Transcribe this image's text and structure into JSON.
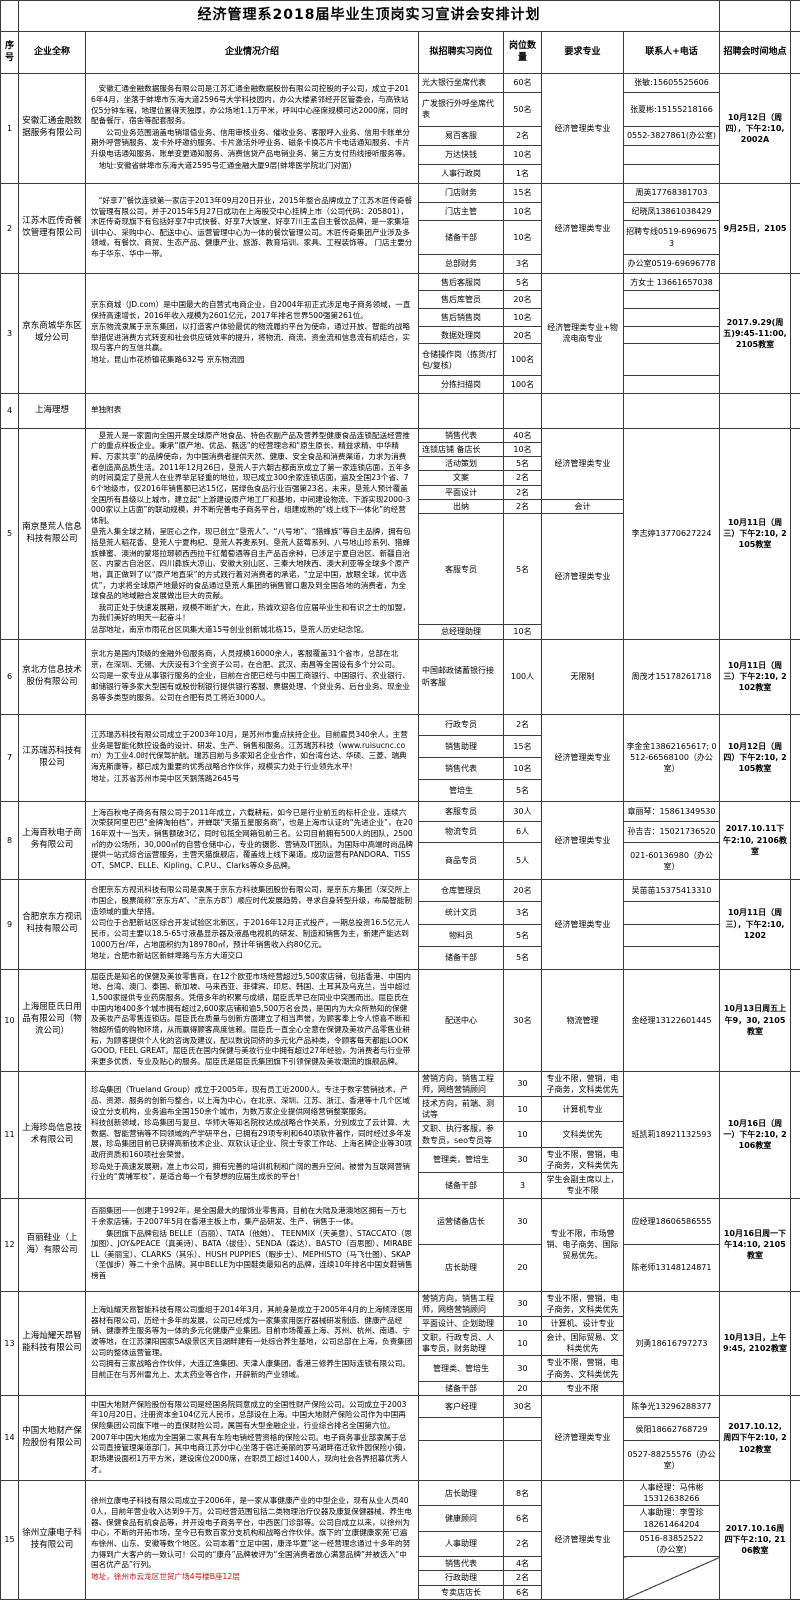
{
  "title": "经济管理系2018届毕业生顶岗实习宣讲会安排计划",
  "headers": [
    "序号",
    "企业全称",
    "企业情况介绍",
    "拟招聘实习岗位",
    "岗位数量",
    "要求专业",
    "联系人+电话",
    "招聘会时间地点"
  ],
  "colors": {
    "red_text": "#cc1111"
  },
  "rows": [
    {
      "seq": "1",
      "company": "安徽汇通金融数据服务有限公司",
      "intro": [
        {
          "t": "　安徽汇通金融数据服务有限公司是江苏汇通金融数据股份有限公司控股的子公司，成立于2016年4月，坐落于蚌埠市东海大道2596号大学科技园内，办公大楼紧邻经开区管委会，与高铁站仅5分钟车程，地理位置得天独厚，办公场地1.1万平米，呼叫中心座席规模可达2000席，同时配备餐厅、宿舍等配套服务。"
        },
        {
          "t": "　　公司业务范围涵盖电销增值业务、信用审核业务、催收业务、客服呼入业务、信用卡账单分期外呼营销服务、发卡外呼邀约服务、卡片激活外呼业务、磁条卡换芯片卡电话通知服务、卡片升级电话通知服务、账单变更通知服务、消费信贷产品电销业务、第三方支付热线接听服务等。"
        },
        {
          "t": "　地址:安徽省蚌埠市东海大道2595号汇通金融大厦9层(蚌埠医学院北门对面)"
        }
      ],
      "positions": [
        {
          "title": "光大银行坐席代表",
          "count": "60名"
        },
        {
          "title": "广发银行外呼坐席代表",
          "count": "50名"
        },
        {
          "title": "易百客服",
          "count": "2名"
        },
        {
          "title": "万达快钱",
          "count": "10名"
        },
        {
          "title": "人事行政岗",
          "count": "1名"
        }
      ],
      "majors": [
        {
          "text": "经济管理类专业",
          "span": 5
        }
      ],
      "contacts": [
        {
          "text": "张敏:15605525606"
        },
        {
          "text": "张夏彬:15155218166"
        },
        {
          "text": "0552-3827861(办公室)"
        },
        {
          "text": ""
        },
        {
          "text": ""
        }
      ],
      "time": "10月12日（周四），下午2:10, 2002A"
    },
    {
      "seq": "2",
      "company": "江苏木匠传奇餐饮管理有限公司",
      "intro": [
        {
          "t": "　“好享7”餐饮连锁第一家店于2013年09月20日开业，2015年整合品牌成立了江苏木匠传奇餐饮管理有限公司，并于2015年5月27日成功在上海股交中心挂牌上市（公司代码：205801），木匠传奇现旗下有包括好享7中式快餐、好享7大饭堂、好享7川王孟自主餐饮品牌，是一家集培训中心、采购中心、配送中心、运营管理中心为一体的餐饮管理公司。木匠传奇集团产业涉及多领域，有餐饮、商贸、生态产品、健康产业、旅游、教育培训、家具、工程装饰等。 门店主要分布于华东、华中一带。"
        }
      ],
      "positions": [
        {
          "title": "门店财务",
          "count": "15名"
        },
        {
          "title": "门店主管",
          "count": "10名"
        },
        {
          "title": "储备干部",
          "count": "10名"
        },
        {
          "title": "总部财务",
          "count": "3名"
        }
      ],
      "majors": [
        {
          "text": "经济管理类专业",
          "span": 4
        }
      ],
      "contacts": [
        {
          "text": "周英17768381703"
        },
        {
          "text": "纪晓凤13861038429"
        },
        {
          "text": "招聘专线0519-69696753"
        },
        {
          "text": "办公室0519-69696778"
        }
      ],
      "time": "9月25日，2105"
    },
    {
      "seq": "3",
      "company": "京东商城华东区域分公司",
      "intro": [
        {
          "t": "京东商城（JD.com）是中国最大的自营式电商企业，自2004年初正式涉足电子商务领域，一直保持高速增长，2016年收入规模为2601亿元，2017年排名世界500强第261位。"
        },
        {
          "t": "京东物流隶属于京东集团，以打造客户体验最优的物流履约平台为使命，通过开放、智能的战略举措促进消费方式转变和社会供应链效率的提升，将物流、商流、资金流和信息流有机结合，实现与客户的互信共赢。"
        },
        {
          "t": ""
        },
        {
          "t": "地址，昆山市花桥镇花集路632号 京东物流园"
        }
      ],
      "positions": [
        {
          "title": "售后客服岗",
          "count": "5名"
        },
        {
          "title": "售后库管员",
          "count": "20名"
        },
        {
          "title": "售后销售岗",
          "count": "10名"
        },
        {
          "title": "数据处理岗",
          "count": "20名"
        },
        {
          "title": "仓储操作岗（拣货/打包/复核）",
          "count": "100名"
        },
        {
          "title": "分拣扫描岗",
          "count": "100名"
        }
      ],
      "majors": [
        {
          "text": "经济管理类专业+物流电商专业",
          "span": 6
        }
      ],
      "contacts": [
        {
          "text": "方女士 13661657038"
        },
        {
          "text": ""
        },
        {
          "text": ""
        },
        {
          "text": ""
        },
        {
          "text": ""
        },
        {
          "text": ""
        }
      ],
      "time": "2017.9.29(周五)9:45-11:00, 2105教室"
    },
    {
      "seq": "4",
      "company": "上海理想",
      "intro": [
        {
          "t": "单独附表"
        }
      ],
      "positions": [
        {
          "title": "",
          "count": ""
        }
      ],
      "majors": [
        {
          "text": "",
          "span": 1
        }
      ],
      "contacts": [
        {
          "text": "",
          "span": 1
        }
      ],
      "time": ""
    },
    {
      "seq": "5",
      "company": "南京垦荒人信息科技有限公司",
      "intro": [
        {
          "t": "　垦荒人是一家面向全国开展全球原产地食品、特色农副产品及营养型健康食品连锁配送经营推广的重点样板企业。秉承“原产地、优品、甄选”的经营理念和“原生原长、精益求精、中华精粹、万家共享”的品牌使命，为中国消费者提供天然、健康、安全食品和消费渠道，力求为消费者创造高品质生活。2011年12月26日，垦荒人于六朝古都南京成立了第一家连锁店面，五年多的时间奠定了垦荒人在业界举足轻重的地位，现已成立300余家连锁店面，遍及全国23个省、76个地级市，仅2016年销售额已达15亿，居绿色食品行业百强第23名。未来，垦荒人预计覆盖全国所有县级以上城市，建立起“上游建设原产地工厂和基地，中间建设物流、下游实现2000-3000家以上店面”的联动规模，并不断完善电子商务平台，组建成熟的“线上线下一体化”的经营体制。"
        },
        {
          "t": "垦荒人集全球之精，呈匠心之作，现已创立“垦荒人”、“八号地”、“猎蜂族”等自主品牌，拥有包括垦荒人稻花香、垦荒人宁夏枸杞、垦荒人荞麦系列、垦荒人蓝莓系列、八号地山珍系列、猎蜂族蜂蜜、澳洲的蒙塔拉琊顿西西拉干红葡萄酒等自主产品百余种，已涉足宁夏自治区、新疆自治区、内蒙古自治区、四川彝族大凉山、安徽大别山区、三秦大地陕西、澳大利亚等全球多个原产地，真正做到了以“原产地直采”的方式践行着对消费者的承诺，“立足中国，放眼全球，优中选优”，力求将全球原产地最好的食品通过垦荒人集团的销售窗口惠及到全国各地的消费者，为全球食品的地域融合发展做出巨大的贡献。"
        },
        {
          "t": "　我司正处于快速发展期，规模不断扩大，在此，热诚欢迎各位应届毕业生和有识之士的加盟，为我们美好的明天一起奋斗！"
        },
        {
          "t": "总部地址，南京市雨花台区凤集大道15号创业创新城北栋15，垦荒人历史纪念馆。"
        }
      ],
      "positions": [
        {
          "title": "销售代表",
          "count": "40名"
        },
        {
          "title": "连锁店铺 备店长",
          "count": "10名"
        },
        {
          "title": "活动策划",
          "count": "5名"
        },
        {
          "title": "文案",
          "count": "2名"
        },
        {
          "title": "平面设计",
          "count": "2名"
        },
        {
          "title": "出纳",
          "count": "2名"
        },
        {
          "title": "客服专员",
          "count": "5名"
        },
        {
          "title": "总经理助理",
          "count": "10名"
        }
      ],
      "majors": [
        {
          "text": "经济管理类专业",
          "span": 5
        },
        {
          "text": "会计",
          "span": 1
        },
        {
          "text": "经济管理类专业",
          "span": 2
        }
      ],
      "contacts": [
        {
          "text": "李志婷13770627224",
          "span": 8
        }
      ],
      "time": "10月11日（周三）下午2:10, 2105教室"
    },
    {
      "seq": "6",
      "company": "京北方信息技术股份有限公司",
      "intro": [
        {
          "t": "京北方是国内顶级的金融外包服务商，人员规模16000余人，客服覆盖31个省市，总部在北京，在深圳、无锡、大庆设有3个全资子公司，在合肥、武汉、南昌等全国设有多个分公司。"
        },
        {
          "t": "公司是一家专业从事银行服务的企业，目前在合肥已经与中国工商银行、中国银行、农业银行、邮储银行等多家大型国有或股份制银行提供银行客服、票据处理、个贷业务、后台业务、现金业务等多类型的服务。公司在合肥有员工将近3000人。"
        }
      ],
      "positions": [
        {
          "title": "中国邮政储蓄银行接听客服",
          "count": "100人"
        }
      ],
      "majors": [
        {
          "text": "无限制",
          "span": 1
        }
      ],
      "contacts": [
        {
          "text": "周茂才15178261718",
          "span": 1
        }
      ],
      "time": "10月11日（周三）下午2:10, 2102教室"
    },
    {
      "seq": "7",
      "company": "江苏瑞苏科技有限公司",
      "intro": [
        {
          "t": "江苏瑞苏科技有限公司成立于2003年10月，是苏州市重点扶持企业。目前雇员340余人，主营业务是智能化数控设备的设计、研发、生产、销售和服务。江苏瑞苏科技（www.ruisucnc.com）为工业4.0时代保驾护航。瑞苏目前与多家知名企业合作，如台湾台达、华硕、三菱、瑞典海克斯康等，都已成为重要的优秀战略合作伙伴，规模实力处于行业领先水平！"
        },
        {
          "t": "地址，江苏省苏州市吴中区天鹅荡路2645号"
        }
      ],
      "positions": [
        {
          "title": "行政专员",
          "count": "2名"
        },
        {
          "title": "销售助理",
          "count": "15名"
        },
        {
          "title": "销售代表",
          "count": "10名"
        },
        {
          "title": "管培生",
          "count": "5名"
        }
      ],
      "majors": [
        {
          "text": "经济管理类专业",
          "span": 4
        }
      ],
      "contacts": [
        {
          "text": "李金金13862165617; 0512-66568100（办公室）",
          "span": 4
        }
      ],
      "time": "10月12日（周四）下午2:10, 2105教室"
    },
    {
      "seq": "8",
      "company": "上海百秋电子商务有限公司",
      "intro": [
        {
          "t": "上海百秋电子商务有限公司于2011年成立，六载耕耘，如今已是行业前五的标杆企业，连续六次荣获阿里巴巴“金牌淘拍档”，并蝉联“天猫五星服务商”，也是上海市认证的“先进企业”，在2016年双十一当天，销售额破3亿，同时包揽全网箱包前三名。公司目前拥有500人的团队，2500㎡的办公场所，30,000㎡的自营仓储中心，专业的摄影、营销及IT团队。为国际中高端时尚品牌提供一站式综合运营服务，主营天猫旗舰店，覆盖线上线下渠道。成功运营有PANDORA、TISSOT、SMCP、ELLE、Kipling、C.P.U.、Clarks等众多品牌。"
        }
      ],
      "positions": [
        {
          "title": "客服专员",
          "count": "30人"
        },
        {
          "title": "物流专员",
          "count": "6人"
        },
        {
          "title": "商品专员",
          "count": "5人"
        }
      ],
      "majors": [
        {
          "text": "经济管理类专业",
          "span": 3
        }
      ],
      "contacts": [
        {
          "text": "章丽琴：15861349530"
        },
        {
          "text": "孙吉吉：15021736520"
        },
        {
          "text": "021-60136980（办公室）"
        }
      ],
      "time": "2017.10.11下午2:10, 2106教室"
    },
    {
      "seq": "9",
      "company": "合肥京东方视讯科技有限公司",
      "intro": [
        {
          "t": "合肥京东方视讯科技有限公司是隶属于京东方科技集团股份有限公司，是京东方集团（深交所上市国企，股票简称“京东方A”、“京东方B”）顺应时代发展趋势，寻求自身转型升级，布局智能制造领域的重大举措。"
        },
        {
          "t": "公司位于合肥新站区综合开发试验区北新区，于2016年12月正式投产，一期总投资16.5亿元人民币，公司主要以18.5-65寸液晶显示器及液晶电视机的研发、制造和销售为主，新建产能达到1000万台/年，占地面积约为189780㎡，预计年销售收入约80亿元。"
        },
        {
          "t": "地址，合肥市新站区新蚌埠路与东方大道交口"
        }
      ],
      "positions": [
        {
          "title": "仓库管理员",
          "count": "20名"
        },
        {
          "title": "统计文员",
          "count": "3名"
        },
        {
          "title": "物料员",
          "count": "5名"
        },
        {
          "title": "储备干部",
          "count": "5名"
        }
      ],
      "majors": [
        {
          "text": "经济管理类专业",
          "span": 4
        }
      ],
      "contacts": [
        {
          "text": "吴苗苗15375413310"
        },
        {
          "text": ""
        },
        {
          "text": ""
        },
        {
          "text": ""
        }
      ],
      "time": "10月11日（周三），下午2:10, 1202"
    },
    {
      "seq": "10",
      "company": "上海屈臣氏日用品有限公司（物流公司）",
      "intro": [
        {
          "t": "屈臣氏是知名的保健及美妆零售商，在12个欧亚市场经营超过5,500家店铺，包括香港、中国内地、台湾、澳门、泰国、新加坡、马来西亚、菲律宾、印尼、韩国、土耳其及乌克兰，当中超过1,500家提供专业药房服务。凭借多年的积累与成绩，屈臣氏早已在同业中突围而出。屈臣氏在中国内地400多个城市拥有超过2,600家店铺和逾5,500万名会员，是国内为大众所熟知的保健及美妆产品零售连锁店。屈臣氏在质量与创新方面建立了相当声誉，为顾客奉上令人惊喜不断和物超所值的购物环境，从而赢得顾客高度信赖。屈臣氏一直全心全意在保健及美妆产品零售业耕耘，为顾客提供个人化的咨询及建议，配以数说同侪的多元化产品种类，令顾客每天都能LOOK GOOD, FEEL GREAT。屈臣氏在国内保健与美妆行业中拥有超过27年经验，为消费者与行业带来更多优质、专业及贴心的服务。屈臣氏是屈臣氏集团旗下引领保健及美妆潮流的旗舰品牌。"
        }
      ],
      "positions": [
        {
          "title": "配送中心",
          "count": "30名"
        }
      ],
      "majors": [
        {
          "text": "物流管理",
          "span": 1
        }
      ],
      "contacts": [
        {
          "text": "金经理13122601445",
          "span": 1
        }
      ],
      "time": "10月13日周五上午9，30, 2105教室"
    },
    {
      "seq": "11",
      "company": "上海珍岛信息技术有限公司",
      "intro": [
        {
          "t": "珍岛集团（Trueland Group）成立于2005年，现有员工近2000人。专注于数字营销技术、产品、资源、服务的创新与整合，以上海为中心，在北京、深圳、江苏、浙江、香港等十几个区域设立分支机构，业务遍布全国150余个城市，为数万家企业提供网络营销整案服务。"
        },
        {
          "t": "科技创新领域，珍岛集团与复旦、华师大等知名院校达成战略合作关系，分别成立了云计算、大数据、智能营销等不同领域的产学研平台，已拥有29项专利和640项软件著作，同时经过多年发展，珍岛集团目前已获得高新技术企业、双软认证企业、院士专家工作站、上海名牌企业等30项政府资质和160项社会荣誉。"
        },
        {
          "t": "珍岛处于高速发展期，准上市公司，拥有完善的培训机制和广阔的晋升空间。被誉为互联网营销行业的“黄埔军校”，是适合每一个有梦想的应届生成长的平台！"
        }
      ],
      "positions": [
        {
          "title": "营销方向，销售工程师，网络营销顾问",
          "count": "30"
        },
        {
          "title": "技术方向，前端、测试等",
          "count": "10"
        },
        {
          "title": "文职、执行客服，参数专员，seo专员等",
          "count": "10"
        },
        {
          "title": "管理类，管培生",
          "count": "30"
        },
        {
          "title": "储备干部",
          "count": "3"
        }
      ],
      "majors": [
        {
          "text": "专业不限，营销，电子商务，文科类优先",
          "span": 1
        },
        {
          "text": "计算机专业",
          "span": 1
        },
        {
          "text": "文科类优先",
          "span": 1
        },
        {
          "text": "专业不限，营销，电子商务，文科类优先",
          "span": 1
        },
        {
          "text": "学生会副主席以上，专业不限",
          "span": 1
        }
      ],
      "contacts": [
        {
          "text": "班凯莉18921132593",
          "span": 5
        }
      ],
      "time": "10月16日（周一）下午2:10, 2106教室"
    },
    {
      "seq": "12",
      "company": "百丽鞋业（上海）有限公司",
      "intro": [
        {
          "t": "百丽集团——创建于1992年，是全国最大的服饰业零售商，目前在大陆及港澳地区拥有一万七千余家店铺，于2007年5月在香港主板上市，集产品研发、生产、销售于一体。"
        },
        {
          "t": "　　集团旗下品牌包括 BELLE（百丽）、TATA（他她）、 TEENMIX（天美意）、STACCATO（思加图）、JOY&PEACE（真美诗）、BATA（拔佳）、SENDA（森达）、BASTO（百思图）、MIRABELL（美丽宝）、CLARKS（其乐）、HUSH PUPPIES（暇步士）、MEPHISTO（马飞仕图）、SKAP（圣伽步）等二十余个品牌。其中BELLE为中国鞋类最知名的品牌，连续10年排名中国女鞋销售榜首"
        }
      ],
      "positions": [
        {
          "title": "运营储备店长",
          "count": "30"
        },
        {
          "title": "店长助理",
          "count": "20"
        }
      ],
      "majors": [
        {
          "text": "专业不限，市场营销、电子商务、国际贸易优先。",
          "span": 2
        }
      ],
      "contacts": [
        {
          "text": "应经理18606586555"
        },
        {
          "text": "陈老师13148124871"
        }
      ],
      "time": "10月16日周一下午14:10, 2105教室"
    },
    {
      "seq": "13",
      "company": "上海灿耀天昂智能科技有限公司",
      "intro": [
        {
          "t": "上海灿耀天昂智能科技有限公司重组于2014年3月，其前身是成立于2005年4月的上海倾泽医用器材有限公司，历经十多年的发展，公司已经成为一家集家用医疗器械研发制造、健康产品经销、健康养生服务等为一体的多元化健康产业集团。目前市场覆盖上海、苏州、杭州、南通、宁波等地，在江苏溧阳国家5A级景区天目湖畔建有一处综合养生基地，公司总部在上海，负责集团公司的整体运营管理。"
        },
        {
          "t": "公司拥有三家战略合作伙伴，大连辽渔集团、天津人康集团、香港三修养生国际连锁有限公司。目前正在与苏州雷允上、太太药业等合作，开辟新的产业领域。"
        }
      ],
      "positions": [
        {
          "title": "营销方向，销售工程师，网络营销顾问",
          "count": "30"
        },
        {
          "title": "平面设计、企划助理",
          "count": "10"
        },
        {
          "title": "文职，行政专员、人事专员，财务助理",
          "count": "10"
        },
        {
          "title": "管理类、管培生",
          "count": "30"
        },
        {
          "title": "储备干部",
          "count": "20"
        }
      ],
      "majors": [
        {
          "text": "专业不限，营销，电子商务，文科类优先",
          "span": 1
        },
        {
          "text": "计算机、设计专业",
          "span": 1
        },
        {
          "text": "会计、国际贸易、文科类优先",
          "span": 1
        },
        {
          "text": "专业不限，营销，电子商务、文科类优先",
          "span": 1
        },
        {
          "text": "专业不限",
          "span": 1
        }
      ],
      "contacts": [
        {
          "text": "刘勇18616797273",
          "span": 5
        }
      ],
      "time": "10月13日，上午9:45, 2102教室"
    },
    {
      "seq": "14",
      "company": "中国大地财产保险股份有限公司",
      "intro": [
        {
          "t": "中国大地财产保险股份有限公司是经国务院同意成立的全国性财产保险公司。公司成立于2003年10月20日，注册资本金104亿元人民币，总部设在上海。中国大地财产保险公司作为中国再保险集团公司旗下唯一的直保财险公司，属国有大型金融企业，行业综合排名全国第六位。"
        },
        {
          "t": "2007年中国大地成为全国第二家具有车险电销经营资格的保险公司。电子商务事业部隶属于总公司直接管理渠道部门，其中电商江苏分中心坐落于宿迁美丽的罗马湖畔宿迁软件园保险小镇，职场建设面积1万平方米，建设席位2000席，在职员工超过1400人，现向社会各界招募优秀人才。"
        }
      ],
      "positions": [
        {
          "title": "客户经理",
          "count": "30名"
        },
        {
          "title": "",
          "count": ""
        },
        {
          "title": "",
          "count": ""
        }
      ],
      "majors": [
        {
          "text": "经济管理类专业",
          "span": 3
        }
      ],
      "contacts": [
        {
          "text": "陈争光13296288377"
        },
        {
          "text": "侯阳18662768729"
        },
        {
          "text": "0527-88255576（办公室）"
        }
      ],
      "time": "2017.10.12, 周四下午2:10, 2102教室"
    },
    {
      "seq": "15",
      "company": "徐州立康电子科技有限公司",
      "intro": [
        {
          "t": "徐州立康电子科技有限公司成立于2006年，是一家从事健康产业的中型企业，现有从业人员400人，目前年营业收入达到9千万。公司经营范围包括二类物理治疗仪器及康复保健器械、养生电器、保健食品有机食品等，并开设电子商务平台，中西医门诊部等。公司自成立以来，以徐州为中心，不断的开拓市场，至今已有数百家分支机构和战略合作伙伴。旗下的‘立康健康家苑’已遍布徐州、山东、安徽等数个地区。公司本着“立足中国，康泽华夏”这一经营理念通过十多年的努力得到广大客户的一致认可！公司的“康舟”品牌被评为“全国消费者放心满意品牌”并被选入“中国名优产品”行列。"
        },
        {
          "t": "地址，徐州市云龙区世贸广场4号楼B座12层",
          "c": "red"
        }
      ],
      "positions": [
        {
          "title": "店长助理",
          "count": "8名"
        },
        {
          "title": "健康顾问",
          "count": "6名"
        },
        {
          "title": "人事助理",
          "count": "2名"
        },
        {
          "title": "销售代表",
          "count": "4名"
        },
        {
          "title": "行政助理",
          "count": "2名"
        },
        {
          "title": "专卖店店长",
          "count": "6名"
        }
      ],
      "majors": [
        {
          "text": "经济管理类专业",
          "span": 6
        }
      ],
      "contacts": [
        {
          "text": "人事经理：马伟彬\n15312638266"
        },
        {
          "text": "人事助理：李雪珍\n18261464204"
        },
        {
          "text": "0516-83852522\n（办公室）"
        },
        {
          "text": "",
          "span": 3,
          "diag": true
        }
      ],
      "time": "2017.10.16周四下午2:10, 2106教室"
    }
  ]
}
